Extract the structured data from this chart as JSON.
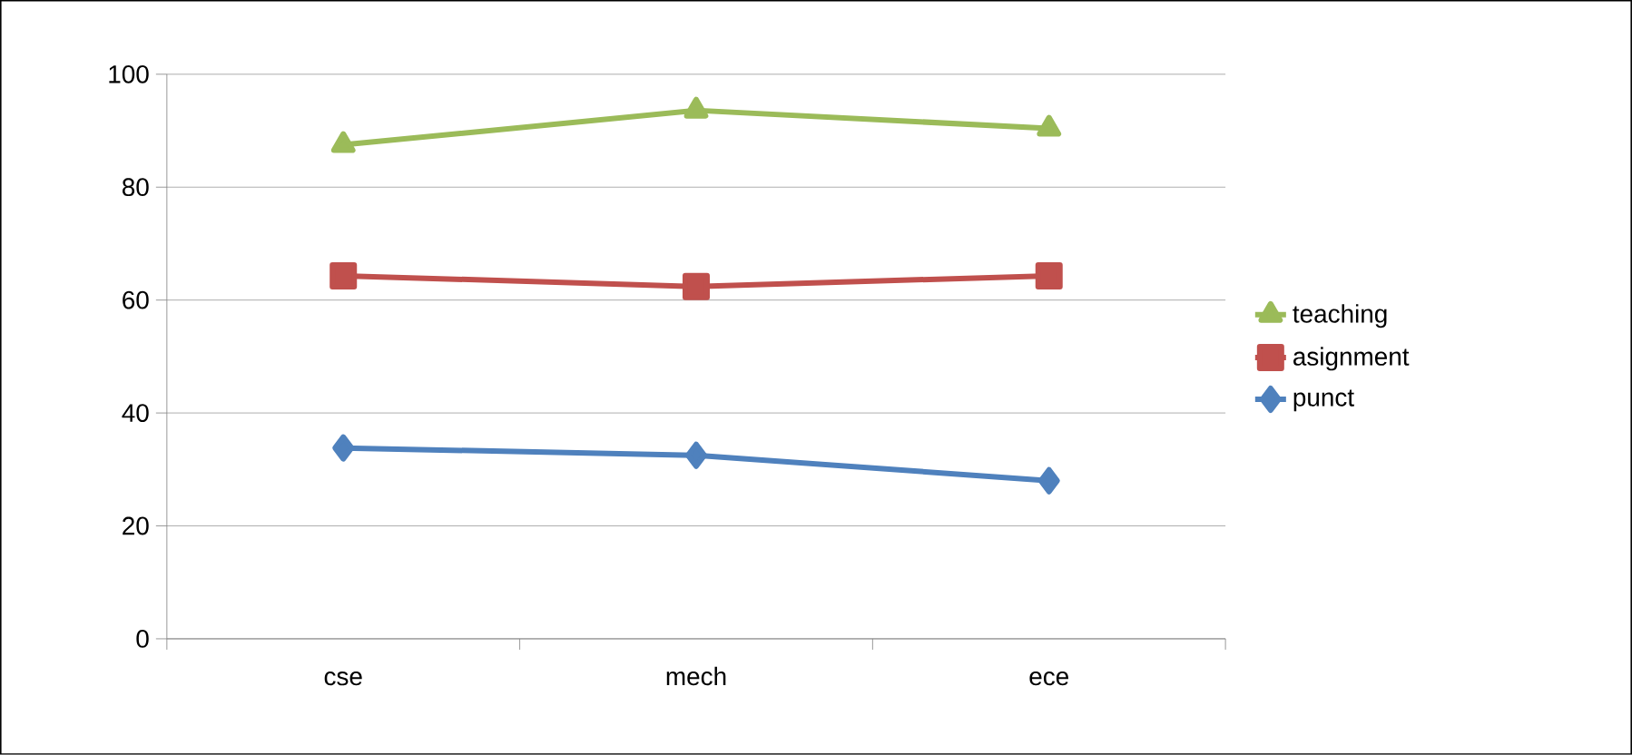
{
  "chart_data": {
    "type": "line",
    "categories": [
      "cse",
      "mech",
      "ece"
    ],
    "series": [
      {
        "name": "teaching",
        "color": "#9bbb59",
        "marker": "triangle",
        "values": [
          87.5,
          93.6,
          90.4
        ]
      },
      {
        "name": "asignment",
        "color": "#c0504d",
        "marker": "square",
        "values": [
          64.3,
          62.4,
          64.3
        ]
      },
      {
        "name": "punct",
        "color": "#4f81bd",
        "marker": "diamond",
        "values": [
          33.8,
          32.5,
          28
        ]
      }
    ],
    "ylim": [
      0,
      100
    ],
    "yticks": [
      0,
      20,
      40,
      60,
      80,
      100
    ],
    "grid": "y",
    "legend": "right"
  }
}
